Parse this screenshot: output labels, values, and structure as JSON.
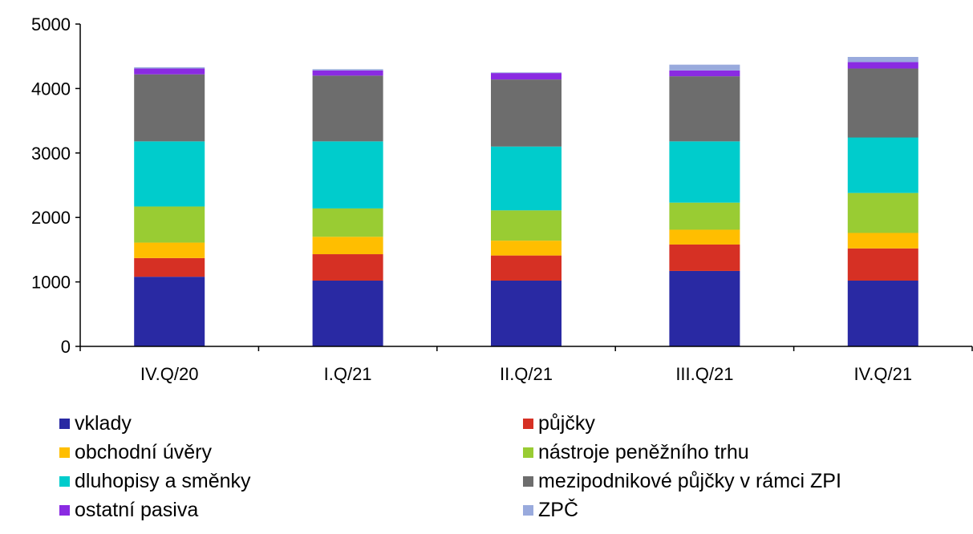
{
  "chart_data": {
    "type": "bar",
    "stacked": true,
    "categories": [
      "IV.Q/20",
      "I.Q/21",
      "II.Q/21",
      "III.Q/21",
      "IV.Q/21"
    ],
    "ylim": [
      0,
      5000
    ],
    "yticks": [
      0,
      1000,
      2000,
      3000,
      4000,
      5000
    ],
    "grid": false,
    "legend_position": "bottom",
    "series": [
      {
        "name": "vklady",
        "color": "#2929a3",
        "values": [
          1080,
          1020,
          1020,
          1170,
          1020
        ]
      },
      {
        "name": "půjčky",
        "color": "#d63024",
        "values": [
          290,
          410,
          390,
          410,
          500
        ]
      },
      {
        "name": "obchodní úvěry",
        "color": "#ffbe00",
        "values": [
          240,
          270,
          230,
          230,
          240
        ]
      },
      {
        "name": "nástroje peněžního trhu",
        "color": "#99cc33",
        "values": [
          560,
          440,
          470,
          420,
          620
        ]
      },
      {
        "name": "dluhopisy a směnky",
        "color": "#00cccc",
        "values": [
          1010,
          1040,
          990,
          950,
          860
        ]
      },
      {
        "name": "mezipodnikové půjčky v rámci ZPI",
        "color": "#6d6d6d",
        "values": [
          1040,
          1020,
          1040,
          1010,
          1070
        ]
      },
      {
        "name": "ostatní pasiva",
        "color": "#8a2be2",
        "values": [
          90,
          80,
          100,
          90,
          100
        ]
      },
      {
        "name": "ZPČ",
        "color": "#99aadd",
        "values": [
          20,
          20,
          10,
          90,
          80
        ]
      }
    ]
  }
}
